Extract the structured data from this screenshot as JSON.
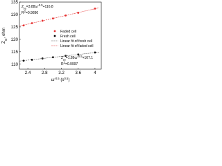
{
  "chart_data": {
    "type": "scatter",
    "x_label": [
      {
        "text": "ω"
      },
      {
        "text": "-0.5",
        "shift": "sup"
      },
      {
        "text": " (s"
      },
      {
        "text": "0.5",
        "shift": "sup"
      },
      {
        "text": ")"
      }
    ],
    "y_label": [
      {
        "text": "Z"
      },
      {
        "text": "re",
        "shift": "sub"
      },
      {
        "text": ", ohm"
      }
    ],
    "xlim": [
      2.2,
      4.15
    ],
    "xticks": [
      2.4,
      2.8,
      3.2,
      3.6,
      4.0
    ],
    "ylim": [
      108,
      135
    ],
    "yticks": [
      110,
      115,
      120,
      125,
      130,
      135
    ],
    "series": [
      {
        "name": "Faded cell",
        "color": "#e53030",
        "style": "marker",
        "x": [
          2.3,
          2.5,
          2.75,
          3.0,
          3.3,
          3.6,
          4.0
        ],
        "values": [
          125.6,
          126.5,
          127.5,
          128.4,
          129.6,
          130.7,
          132.4
        ]
      },
      {
        "name": "Fresh cell",
        "color": "#000000",
        "style": "marker",
        "x": [
          2.3,
          2.5,
          2.75,
          3.0,
          3.3,
          3.6,
          4.0
        ],
        "values": [
          111.4,
          111.8,
          112.3,
          112.8,
          113.4,
          113.9,
          114.7
        ]
      },
      {
        "name": "Linear fit of fresh cell",
        "color": "#555555",
        "style": "line",
        "x": [
          2.2,
          4.1
        ],
        "values": [
          111.258,
          114.849
        ]
      },
      {
        "name": "Linear fit of faded cell",
        "color": "#e53030",
        "style": "line",
        "x": [
          2.2,
          4.1
        ],
        "values": [
          125.336,
          132.708
        ]
      }
    ],
    "annotations": [
      [
        {
          "text": "Z"
        },
        {
          "text": "re",
          "shift": "sub"
        },
        {
          "text": "=3.88ω"
        },
        {
          "text": "-0.5",
          "shift": "sup"
        },
        {
          "text": "+116.8"
        }
      ],
      [
        {
          "text": "R"
        },
        {
          "text": "2",
          "shift": "sup"
        },
        {
          "text": "=0.9890"
        }
      ],
      [
        {
          "text": "Z"
        },
        {
          "text": "re",
          "shift": "sub"
        },
        {
          "text": "=1.89ω"
        },
        {
          "text": "-0.5",
          "shift": "sup"
        },
        {
          "text": "+107.1"
        }
      ],
      [
        {
          "text": "R"
        },
        {
          "text": "2",
          "shift": "sup"
        },
        {
          "text": "=0.9997"
        }
      ]
    ]
  }
}
